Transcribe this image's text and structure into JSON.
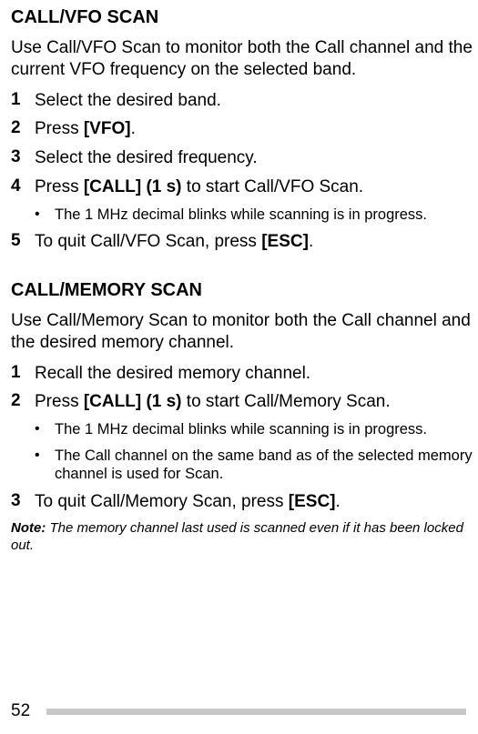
{
  "section1": {
    "title": "CALL/VFO SCAN",
    "intro": "Use Call/VFO Scan to monitor both the Call channel and the current VFO frequency on the selected band.",
    "steps": [
      {
        "n": "1",
        "text_pre": "Select the desired band.",
        "bold": "",
        "text_post": ""
      },
      {
        "n": "2",
        "text_pre": "Press ",
        "bold": "[VFO]",
        "text_post": "."
      },
      {
        "n": "3",
        "text_pre": "Select the desired frequency.",
        "bold": "",
        "text_post": ""
      },
      {
        "n": "4",
        "text_pre": "Press ",
        "bold": "[CALL] (1 s)",
        "text_post": " to start Call/VFO Scan."
      }
    ],
    "bullet4": "The 1 MHz decimal blinks while scanning is in progress.",
    "step5": {
      "n": "5",
      "text_pre": "To quit Call/VFO Scan, press ",
      "bold": "[ESC]",
      "text_post": "."
    }
  },
  "section2": {
    "title": "CALL/MEMORY SCAN",
    "intro": "Use Call/Memory Scan to monitor both the Call channel and the desired memory channel.",
    "steps": [
      {
        "n": "1",
        "text_pre": "Recall the desired memory channel.",
        "bold": "",
        "text_post": ""
      },
      {
        "n": "2",
        "text_pre": "Press ",
        "bold": "[CALL] (1 s)",
        "text_post": " to start Call/Memory Scan."
      }
    ],
    "bullets2": [
      "The 1 MHz decimal blinks while scanning is in progress.",
      "The Call channel on the same band as of the selected memory channel is used for Scan."
    ],
    "step3": {
      "n": "3",
      "text_pre": "To quit Call/Memory Scan, press ",
      "bold": "[ESC]",
      "text_post": "."
    },
    "note_label": "Note:",
    "note_body": "  The memory channel last used is scanned even if it has been locked out."
  },
  "page_number": "52"
}
